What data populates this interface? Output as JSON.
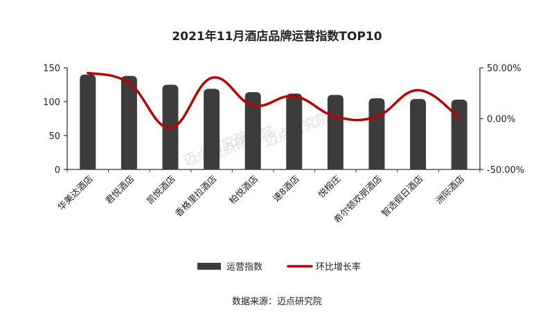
{
  "chart_data": {
    "type": "bar+line",
    "title": "2021年11月酒店品牌运营指数TOP10",
    "categories": [
      "华美达酒店",
      "君悦酒店",
      "凯悦酒店",
      "香格里拉酒店",
      "柏悦酒店",
      "速8酒店",
      "悦榕庄",
      "希尔顿欢朋酒店",
      "智选假日酒店",
      "洲际酒店"
    ],
    "series": [
      {
        "name": "运营指数",
        "type": "bar",
        "axis": "left",
        "color": "#3d3b3b",
        "values": [
          140,
          138,
          125,
          119,
          114,
          112,
          110,
          105,
          104,
          103
        ]
      },
      {
        "name": "环比增长率",
        "type": "line",
        "axis": "right",
        "color": "#c00000",
        "values": [
          0.45,
          0.35,
          -0.09,
          0.4,
          0.13,
          0.22,
          0.02,
          0.02,
          0.28,
          0.01
        ]
      }
    ],
    "y_left": {
      "ylim": [
        0,
        150
      ],
      "ticks": [
        "0",
        "50",
        "100",
        "150"
      ],
      "tick_values": [
        0,
        50,
        100,
        150
      ]
    },
    "y_right": {
      "ylim": [
        -0.5,
        0.5
      ],
      "ticks": [
        "-50.00%",
        "0.00%",
        "50.00%"
      ],
      "tick_values": [
        -0.5,
        0,
        0.5
      ]
    },
    "legend": {
      "position": "bottom",
      "labels": [
        "运营指数",
        "环比增长率"
      ]
    },
    "source": "数据来源：迈点研究院"
  },
  "watermarks": [
    "迈点研究院",
    "迈点研究院",
    "迈点研究院"
  ]
}
